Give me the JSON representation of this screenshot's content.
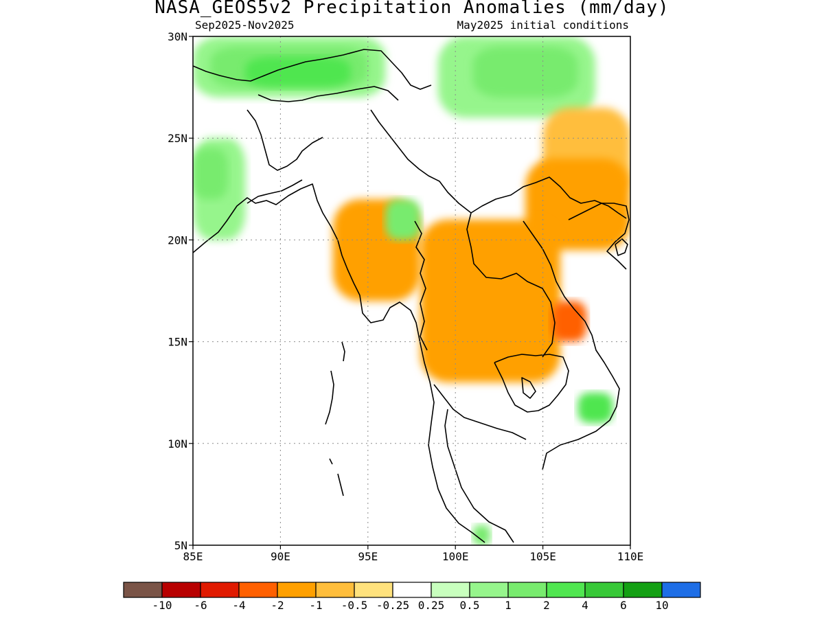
{
  "title": "NASA_GEOS5v2 Precipitation Anomalies (mm/day)",
  "subtitle_left": "Sep2025-Nov2025",
  "subtitle_right": "May2025 initial conditions",
  "chart_data": {
    "type": "heatmap",
    "x_range_deg_east": [
      85,
      110
    ],
    "y_range_deg_north": [
      5,
      30
    ],
    "x_ticks": [
      "85E",
      "90E",
      "95E",
      "100E",
      "105E",
      "110E"
    ],
    "y_ticks": [
      "5N",
      "10N",
      "15N",
      "20N",
      "25N",
      "30N"
    ],
    "grid": "dotted",
    "colorbar": {
      "colors": [
        "#7a5447",
        "#b80000",
        "#e01a00",
        "#ff6000",
        "#ffa000",
        "#ffbe3c",
        "#ffe27d",
        "#ffffff",
        "#c8ffbe",
        "#96f58c",
        "#78eb6e",
        "#50e650",
        "#37c837",
        "#14a014",
        "#1e6ee6"
      ],
      "labels": [
        "-10",
        "-6",
        "-4",
        "-2",
        "-1",
        "-0.5",
        "-0.25",
        "0.25",
        "0.5",
        "1",
        "2",
        "4",
        "6",
        "10"
      ]
    },
    "regions": [
      {
        "level": "0.5",
        "lon": [
          85,
          96
        ],
        "lat": [
          27,
          30
        ]
      },
      {
        "level": "1",
        "lon": [
          86,
          95
        ],
        "lat": [
          27.5,
          29.5
        ]
      },
      {
        "level": "2",
        "lon": [
          88,
          94
        ],
        "lat": [
          27.5,
          29
        ]
      },
      {
        "level": "0.5",
        "lon": [
          85,
          88
        ],
        "lat": [
          20,
          25
        ]
      },
      {
        "level": "1",
        "lon": [
          85,
          87
        ],
        "lat": [
          22,
          24.5
        ]
      },
      {
        "level": "0.5",
        "lon": [
          99,
          108
        ],
        "lat": [
          26,
          30
        ]
      },
      {
        "level": "1",
        "lon": [
          101,
          107
        ],
        "lat": [
          27,
          29.5
        ]
      },
      {
        "level": "-0.5",
        "lon": [
          105,
          110
        ],
        "lat": [
          22,
          26.5
        ]
      },
      {
        "level": "-1",
        "lon": [
          104,
          110
        ],
        "lat": [
          19.5,
          24
        ]
      },
      {
        "level": "-1",
        "lon": [
          93,
          98
        ],
        "lat": [
          17,
          22
        ]
      },
      {
        "level": "-1",
        "lon": [
          98,
          106
        ],
        "lat": [
          13,
          21
        ]
      },
      {
        "level": "-2",
        "lon": [
          105.5,
          107.5
        ],
        "lat": [
          15,
          17
        ]
      },
      {
        "level": "1",
        "lon": [
          96,
          98
        ],
        "lat": [
          20,
          22
        ]
      },
      {
        "level": "2",
        "lon": [
          107,
          109
        ],
        "lat": [
          11,
          12.5
        ]
      },
      {
        "level": "1",
        "lon": [
          101,
          102
        ],
        "lat": [
          5,
          6
        ]
      }
    ]
  }
}
